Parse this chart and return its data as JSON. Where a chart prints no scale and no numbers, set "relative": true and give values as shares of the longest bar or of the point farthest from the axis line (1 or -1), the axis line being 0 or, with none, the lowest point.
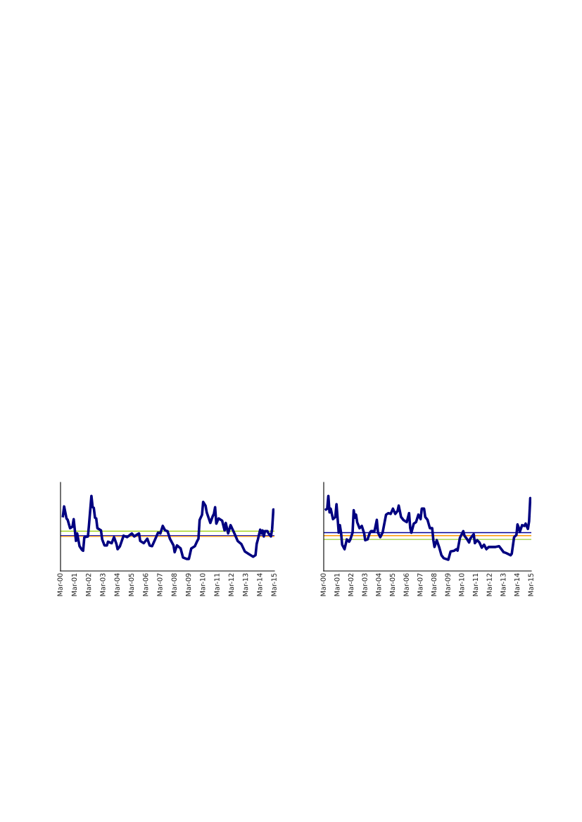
{
  "chart_data": [
    {
      "type": "line",
      "relative": true,
      "grid": false,
      "marker": "none",
      "line_style": "solid",
      "xlim": [
        "2000-03",
        "2015-03"
      ],
      "xticks": [
        {
          "value": "2000-03",
          "label": "Mar-00"
        },
        {
          "value": "2001-03",
          "label": "Mar-01"
        },
        {
          "value": "2002-03",
          "label": "Mar-02"
        },
        {
          "value": "2003-03",
          "label": "Mar-03"
        },
        {
          "value": "2004-03",
          "label": "Mar-04"
        },
        {
          "value": "2005-03",
          "label": "Mar-05"
        },
        {
          "value": "2006-03",
          "label": "Mar-06"
        },
        {
          "value": "2007-03",
          "label": "Mar-07"
        },
        {
          "value": "2008-03",
          "label": "Mar-08"
        },
        {
          "value": "2009-03",
          "label": "Mar-09"
        },
        {
          "value": "2010-03",
          "label": "Mar-10"
        },
        {
          "value": "2011-03",
          "label": "Mar-11"
        },
        {
          "value": "2012-03",
          "label": "Mar-12"
        },
        {
          "value": "2013-03",
          "label": "Mar-13"
        },
        {
          "value": "2014-03",
          "label": "Mar-14"
        },
        {
          "value": "2015-03",
          "label": "Mar-15"
        }
      ],
      "series": [
        {
          "color": "#000080",
          "x": [
            "2000-05",
            "2000-06",
            "2000-08",
            "2000-09",
            "2000-11",
            "2001-01",
            "2001-02",
            "2001-04",
            "2001-05",
            "2001-07",
            "2001-09",
            "2001-10",
            "2001-11",
            "2002-02",
            "2002-03",
            "2002-05",
            "2002-06",
            "2002-07",
            "2002-08",
            "2002-09",
            "2002-10",
            "2003-01",
            "2003-02",
            "2003-04",
            "2003-06",
            "2003-07",
            "2003-10",
            "2003-12",
            "2004-02",
            "2004-03",
            "2004-05",
            "2004-08",
            "2004-11",
            "2005-03",
            "2005-05",
            "2005-09",
            "2005-10",
            "2006-01",
            "2006-04",
            "2006-06",
            "2006-08",
            "2006-10",
            "2007-01",
            "2007-03",
            "2007-05",
            "2007-07",
            "2007-09",
            "2007-11",
            "2008-02",
            "2008-03",
            "2008-05",
            "2008-08",
            "2008-10",
            "2009-01",
            "2009-03",
            "2009-05",
            "2009-08",
            "2009-10",
            "2009-11",
            "2009-12",
            "2010-02",
            "2010-03",
            "2010-05",
            "2010-06",
            "2010-09",
            "2010-11",
            "2010-12",
            "2011-01",
            "2011-02",
            "2011-04",
            "2011-07",
            "2011-09",
            "2011-10",
            "2011-12",
            "2012-02",
            "2012-05",
            "2012-08",
            "2012-11",
            "2013-02",
            "2013-05",
            "2013-09",
            "2013-11",
            "2013-12",
            "2014-01",
            "2014-03",
            "2014-04",
            "2014-05",
            "2014-06",
            "2014-07",
            "2014-09",
            "2014-10",
            "2014-12",
            "2015-01",
            "2015-02",
            "2015-03"
          ],
          "values": [
            0.73,
            0.86,
            0.7,
            0.68,
            0.57,
            0.59,
            0.69,
            0.4,
            0.5,
            0.33,
            0.28,
            0.27,
            0.45,
            0.46,
            0.62,
            1.0,
            0.85,
            0.84,
            0.71,
            0.7,
            0.57,
            0.54,
            0.42,
            0.34,
            0.34,
            0.39,
            0.37,
            0.45,
            0.36,
            0.29,
            0.33,
            0.47,
            0.45,
            0.5,
            0.46,
            0.5,
            0.4,
            0.37,
            0.43,
            0.34,
            0.33,
            0.4,
            0.51,
            0.5,
            0.6,
            0.54,
            0.53,
            0.43,
            0.34,
            0.25,
            0.34,
            0.3,
            0.18,
            0.16,
            0.16,
            0.3,
            0.33,
            0.4,
            0.43,
            0.68,
            0.75,
            0.92,
            0.87,
            0.78,
            0.64,
            0.73,
            0.76,
            0.85,
            0.63,
            0.7,
            0.67,
            0.54,
            0.64,
            0.5,
            0.61,
            0.51,
            0.4,
            0.36,
            0.26,
            0.23,
            0.19,
            0.21,
            0.36,
            0.42,
            0.55,
            0.5,
            0.54,
            0.46,
            0.53,
            0.53,
            0.5,
            0.46,
            0.56,
            0.82,
            0.81
          ]
        }
      ],
      "ref_lines": [
        {
          "axis": "y",
          "value": 0.53,
          "color": "#99cc00"
        },
        {
          "axis": "y",
          "value": 0.47,
          "color": "#2020c0"
        },
        {
          "axis": "y",
          "value": 0.46,
          "color": "#ff9900"
        }
      ]
    },
    {
      "type": "line",
      "relative": true,
      "grid": false,
      "marker": "none",
      "line_style": "solid",
      "xlim": [
        "2000-03",
        "2015-03"
      ],
      "xticks": [
        {
          "value": "2000-03",
          "label": "Mar-00"
        },
        {
          "value": "2001-03",
          "label": "Mar-01"
        },
        {
          "value": "2002-03",
          "label": "Mar-02"
        },
        {
          "value": "2003-03",
          "label": "Mar-03"
        },
        {
          "value": "2004-03",
          "label": "Mar-04"
        },
        {
          "value": "2005-03",
          "label": "Mar-05"
        },
        {
          "value": "2006-03",
          "label": "Mar-06"
        },
        {
          "value": "2007-03",
          "label": "Mar-07"
        },
        {
          "value": "2008-03",
          "label": "Mar-08"
        },
        {
          "value": "2009-03",
          "label": "Mar-09"
        },
        {
          "value": "2010-03",
          "label": "Mar-10"
        },
        {
          "value": "2011-03",
          "label": "Mar-11"
        },
        {
          "value": "2012-03",
          "label": "Mar-12"
        },
        {
          "value": "2013-03",
          "label": "Mar-13"
        },
        {
          "value": "2014-03",
          "label": "Mar-14"
        },
        {
          "value": "2015-03",
          "label": "Mar-15"
        }
      ],
      "series": [
        {
          "color": "#000080",
          "x": [
            "2000-05",
            "2000-06",
            "2000-07",
            "2000-08",
            "2000-09",
            "2000-11",
            "2001-01",
            "2001-02",
            "2001-04",
            "2001-05",
            "2001-06",
            "2001-07",
            "2001-09",
            "2001-11",
            "2002-01",
            "2002-02",
            "2002-04",
            "2002-05",
            "2002-06",
            "2002-07",
            "2002-08",
            "2002-10",
            "2002-12",
            "2003-02",
            "2003-03",
            "2003-05",
            "2003-07",
            "2003-08",
            "2003-11",
            "2004-01",
            "2004-02",
            "2004-04",
            "2004-06",
            "2004-09",
            "2004-11",
            "2005-01",
            "2005-03",
            "2005-05",
            "2005-07",
            "2005-08",
            "2005-10",
            "2005-12",
            "2006-03",
            "2006-05",
            "2006-06",
            "2006-07",
            "2006-09",
            "2006-11",
            "2007-01",
            "2007-03",
            "2007-04",
            "2007-06",
            "2007-07",
            "2007-09",
            "2007-11",
            "2008-01",
            "2008-02",
            "2008-03",
            "2008-05",
            "2008-07",
            "2008-09",
            "2008-11",
            "2009-03",
            "2009-05",
            "2009-08",
            "2009-10",
            "2009-11",
            "2010-01",
            "2010-04",
            "2010-05",
            "2010-07",
            "2010-09",
            "2010-10",
            "2010-11",
            "2011-01",
            "2011-02",
            "2011-04",
            "2011-06",
            "2011-08",
            "2011-10",
            "2011-12",
            "2012-02",
            "2012-04",
            "2012-08",
            "2012-11",
            "2013-01",
            "2013-03",
            "2013-05",
            "2013-09",
            "2013-10",
            "2013-12",
            "2014-02",
            "2014-03",
            "2014-04",
            "2014-05",
            "2014-07",
            "2014-09",
            "2014-10",
            "2014-12",
            "2015-01",
            "2015-02",
            "2015-03"
          ],
          "values": [
            0.82,
            0.83,
            1.0,
            0.78,
            0.83,
            0.69,
            0.72,
            0.89,
            0.51,
            0.61,
            0.51,
            0.35,
            0.29,
            0.42,
            0.39,
            0.42,
            0.51,
            0.81,
            0.71,
            0.75,
            0.65,
            0.57,
            0.6,
            0.5,
            0.41,
            0.42,
            0.51,
            0.53,
            0.53,
            0.68,
            0.51,
            0.45,
            0.51,
            0.75,
            0.77,
            0.76,
            0.83,
            0.76,
            0.8,
            0.87,
            0.72,
            0.68,
            0.65,
            0.77,
            0.57,
            0.51,
            0.63,
            0.65,
            0.75,
            0.69,
            0.83,
            0.83,
            0.72,
            0.68,
            0.57,
            0.57,
            0.41,
            0.32,
            0.41,
            0.32,
            0.21,
            0.17,
            0.15,
            0.26,
            0.27,
            0.29,
            0.27,
            0.44,
            0.53,
            0.47,
            0.43,
            0.38,
            0.43,
            0.45,
            0.49,
            0.37,
            0.41,
            0.38,
            0.31,
            0.35,
            0.29,
            0.32,
            0.32,
            0.32,
            0.33,
            0.29,
            0.25,
            0.24,
            0.21,
            0.23,
            0.45,
            0.48,
            0.62,
            0.58,
            0.52,
            0.61,
            0.6,
            0.63,
            0.56,
            0.66,
            0.97,
            0.95
          ]
        }
      ],
      "ref_lines": [
        {
          "axis": "y",
          "value": 0.51,
          "color": "#000099"
        },
        {
          "axis": "y",
          "value": 0.47,
          "color": "#ff9900"
        },
        {
          "axis": "y",
          "value": 0.42,
          "color": "#99cc33"
        }
      ]
    }
  ]
}
